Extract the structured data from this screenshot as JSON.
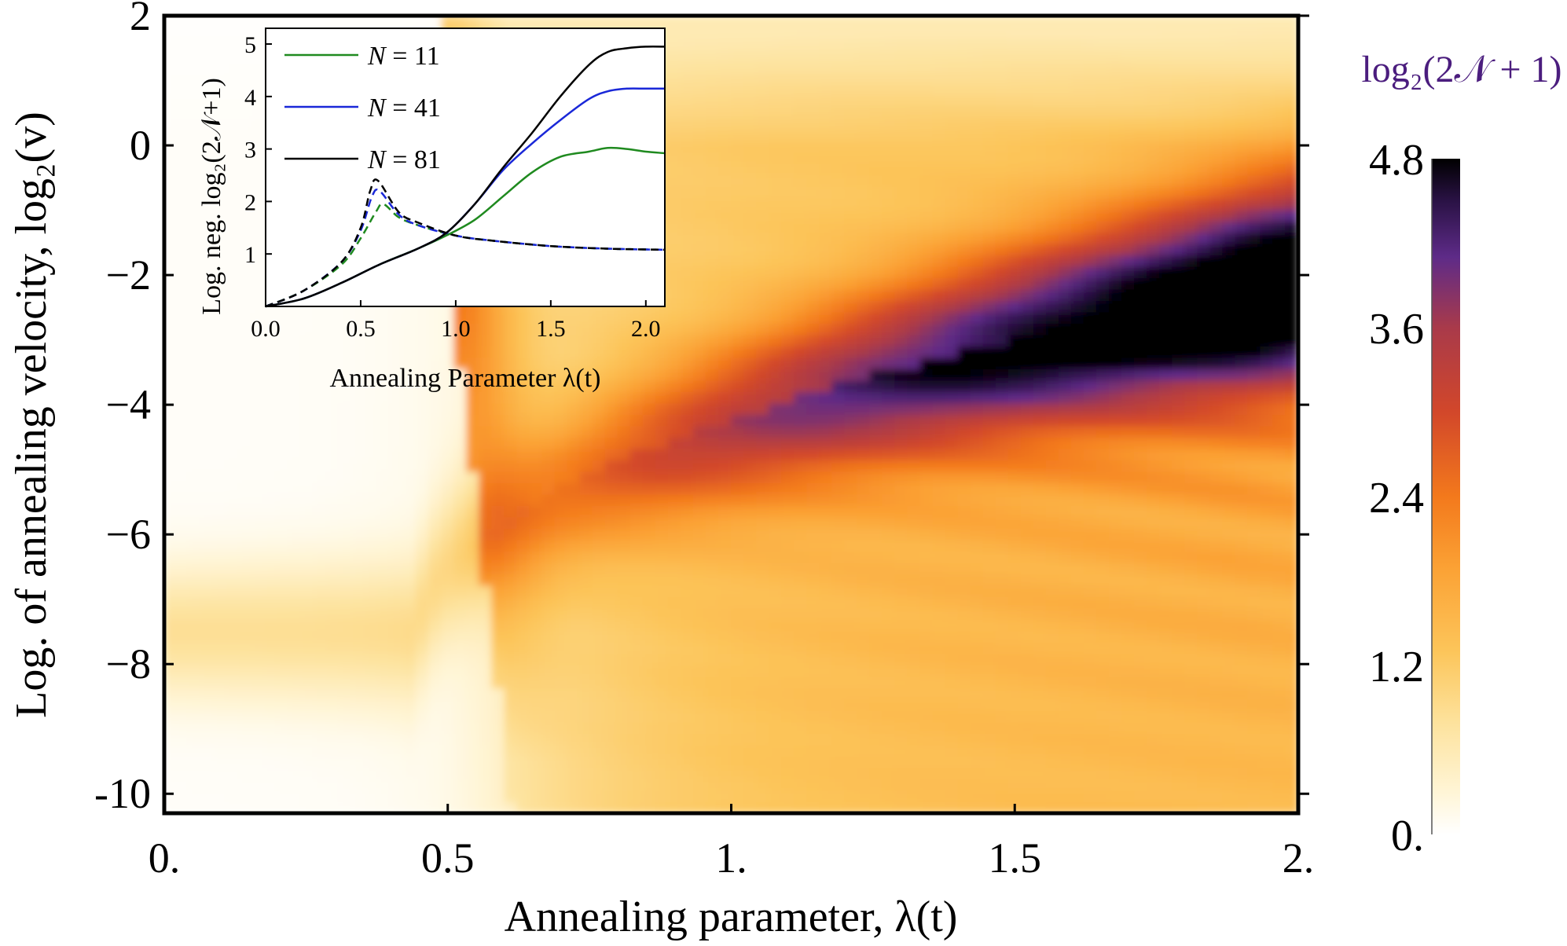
{
  "chart_data": [
    {
      "type": "heatmap",
      "title": "",
      "xlabel": "Annealing parameter, λ(t)",
      "ylabel": "Log. of annealing velocity, log₂(v)",
      "xlim": [
        0,
        2
      ],
      "ylim": [
        -10.3,
        2
      ],
      "x_ticks": [
        {
          "value": 0,
          "label": "0."
        },
        {
          "value": 0.5,
          "label": "0.5"
        },
        {
          "value": 1,
          "label": "1."
        },
        {
          "value": 1.5,
          "label": "1.5"
        },
        {
          "value": 2,
          "label": "2."
        }
      ],
      "y_ticks": [
        {
          "value": 2,
          "label": "2"
        },
        {
          "value": 0,
          "label": "0"
        },
        {
          "value": -2,
          "label": "−2"
        },
        {
          "value": -4,
          "label": "−4"
        },
        {
          "value": -6,
          "label": "−6"
        },
        {
          "value": -8,
          "label": "−8"
        },
        {
          "value": -10,
          "label": "-10"
        }
      ],
      "colorbar": {
        "title": "log₂(2𝒩 + 1)",
        "title_color": "#4b1d7e",
        "range": [
          0,
          4.8
        ],
        "ticks": [
          {
            "value": 4.8,
            "label": "4.8"
          },
          {
            "value": 3.6,
            "label": "3.6"
          },
          {
            "value": 2.4,
            "label": "2.4"
          },
          {
            "value": 1.2,
            "label": "1.2"
          },
          {
            "value": 0,
            "label": "0."
          }
        ],
        "colormap_stops": [
          {
            "value": 0.0,
            "color": "#ffffff"
          },
          {
            "value": 0.3,
            "color": "#fff5d6"
          },
          {
            "value": 0.8,
            "color": "#fde29c"
          },
          {
            "value": 1.3,
            "color": "#fcc55a"
          },
          {
            "value": 1.9,
            "color": "#fba134"
          },
          {
            "value": 2.4,
            "color": "#f3791c"
          },
          {
            "value": 3.0,
            "color": "#d2472a"
          },
          {
            "value": 3.6,
            "color": "#a93a4a"
          },
          {
            "value": 4.1,
            "color": "#5e2b88"
          },
          {
            "value": 4.5,
            "color": "#2a1245"
          },
          {
            "value": 4.8,
            "color": "#000000"
          }
        ]
      },
      "description_features": {
        "onset_lambda": 0.5,
        "max_value": 4.8,
        "max_region_lambda": [
          1.6,
          2.0
        ],
        "max_region_log2v": [
          -2.2,
          -1.0
        ]
      }
    },
    {
      "type": "line",
      "title": "",
      "xlabel": "Annealing Parameter λ(t)",
      "ylabel": "Log. neg. log₂(2𝒩+1)",
      "xlim": [
        0,
        2.1
      ],
      "ylim": [
        0,
        5.3
      ],
      "x_ticks": [
        {
          "value": 0,
          "label": "0.0"
        },
        {
          "value": 0.5,
          "label": "0.5"
        },
        {
          "value": 1,
          "label": "1.0"
        },
        {
          "value": 1.5,
          "label": "1.5"
        },
        {
          "value": 2,
          "label": "2.0"
        }
      ],
      "y_ticks": [
        {
          "value": 1,
          "label": "1"
        },
        {
          "value": 2,
          "label": "2"
        },
        {
          "value": 3,
          "label": "3"
        },
        {
          "value": 4,
          "label": "4"
        },
        {
          "value": 5,
          "label": "5"
        }
      ],
      "legend_position": "top-left",
      "series": [
        {
          "name": "N = 11",
          "legend_var": "N",
          "legend_value": "= 11",
          "color": "#1f8a1f",
          "solid": {
            "x": [
              0,
              0.2,
              0.4,
              0.6,
              0.8,
              0.95,
              1.1,
              1.25,
              1.4,
              1.55,
              1.7,
              1.8,
              1.9,
              2.0,
              2.1
            ],
            "y": [
              0,
              0.15,
              0.45,
              0.8,
              1.1,
              1.35,
              1.65,
              2.1,
              2.55,
              2.85,
              2.95,
              3.02,
              3.0,
              2.95,
              2.92
            ]
          },
          "dashed": {
            "x": [
              0,
              0.2,
              0.4,
              0.5,
              0.58,
              0.62,
              0.7,
              0.8,
              1.0,
              1.2,
              1.5,
              1.8,
              2.1
            ],
            "y": [
              0,
              0.3,
              0.8,
              1.3,
              1.8,
              1.95,
              1.7,
              1.55,
              1.35,
              1.25,
              1.15,
              1.1,
              1.08
            ]
          }
        },
        {
          "name": "N = 41",
          "legend_var": "N",
          "legend_value": "= 41",
          "color": "#1a28d8",
          "solid": {
            "x": [
              0,
              0.2,
              0.4,
              0.6,
              0.8,
              0.95,
              1.1,
              1.25,
              1.4,
              1.55,
              1.7,
              1.8,
              1.9,
              2.0,
              2.1
            ],
            "y": [
              0,
              0.15,
              0.45,
              0.8,
              1.1,
              1.4,
              1.95,
              2.6,
              3.1,
              3.55,
              3.95,
              4.1,
              4.15,
              4.15,
              4.15
            ]
          },
          "dashed": {
            "x": [
              0,
              0.2,
              0.4,
              0.5,
              0.56,
              0.6,
              0.7,
              0.8,
              1.0,
              1.2,
              1.5,
              1.8,
              2.1
            ],
            "y": [
              0,
              0.3,
              0.85,
              1.45,
              2.1,
              2.2,
              1.75,
              1.55,
              1.35,
              1.25,
              1.15,
              1.1,
              1.08
            ]
          }
        },
        {
          "name": "N = 81",
          "legend_var": "N",
          "legend_value": "= 81",
          "color": "#000000",
          "solid": {
            "x": [
              0,
              0.2,
              0.4,
              0.6,
              0.8,
              0.95,
              1.1,
              1.25,
              1.4,
              1.55,
              1.7,
              1.8,
              1.9,
              2.0,
              2.1
            ],
            "y": [
              0,
              0.15,
              0.45,
              0.8,
              1.1,
              1.4,
              1.95,
              2.65,
              3.3,
              4.0,
              4.6,
              4.85,
              4.92,
              4.95,
              4.95
            ]
          },
          "dashed": {
            "x": [
              0,
              0.2,
              0.4,
              0.5,
              0.55,
              0.59,
              0.7,
              0.8,
              1.0,
              1.2,
              1.5,
              1.8,
              2.1
            ],
            "y": [
              0,
              0.3,
              0.85,
              1.5,
              2.2,
              2.4,
              1.8,
              1.6,
              1.35,
              1.25,
              1.15,
              1.1,
              1.08
            ]
          }
        }
      ]
    }
  ]
}
